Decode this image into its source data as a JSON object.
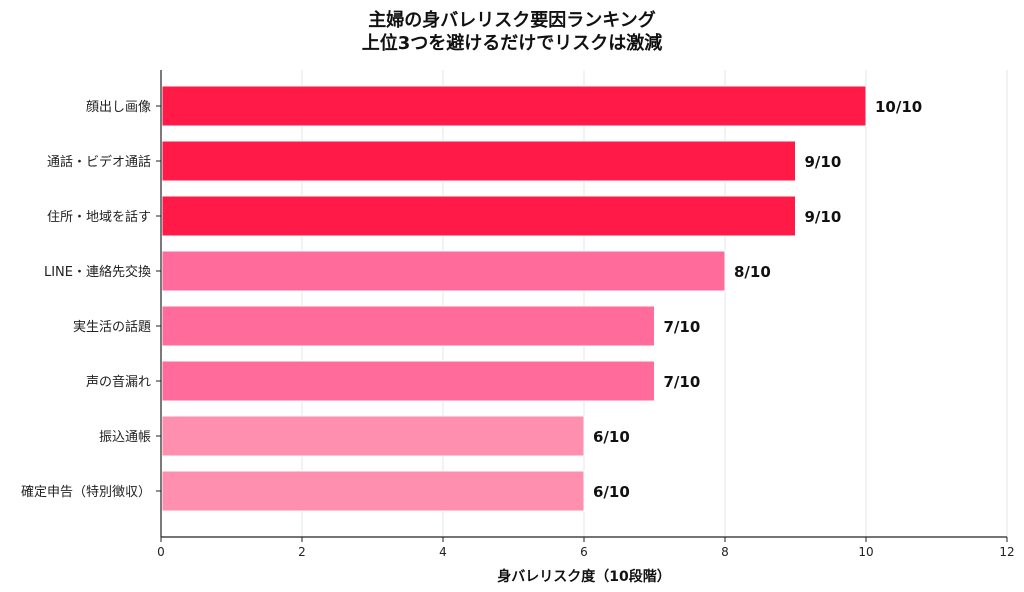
{
  "chart_data": {
    "type": "bar",
    "orientation": "horizontal",
    "title": "主婦の身バレリスク要因ランキング",
    "subtitle": "上位3つを避けるだけでリスクは激減",
    "xlabel": "身バレリスク度（10段階）",
    "ylabel": "",
    "xlim": [
      0,
      12
    ],
    "xticks": [
      "0",
      "2",
      "4",
      "6",
      "8",
      "10",
      "12"
    ],
    "grid": "vertical",
    "categories": [
      "顔出し画像",
      "通話・ビデオ通話",
      "住所・地域を話す",
      "LINE・連絡先交換",
      "実生活の話題",
      "声の音漏れ",
      "振込通帳",
      "確定申告（特別徴収）"
    ],
    "values": [
      10,
      9,
      9,
      8,
      7,
      7,
      6,
      6
    ],
    "data_labels": [
      "10/10",
      "9/10",
      "9/10",
      "8/10",
      "7/10",
      "7/10",
      "6/10",
      "6/10"
    ],
    "colors": [
      "#FF1A47",
      "#FF1A47",
      "#FF1A47",
      "#FF6B9A",
      "#FF6B9A",
      "#FF6B9A",
      "#FF8FAE",
      "#FF8FAE"
    ]
  }
}
